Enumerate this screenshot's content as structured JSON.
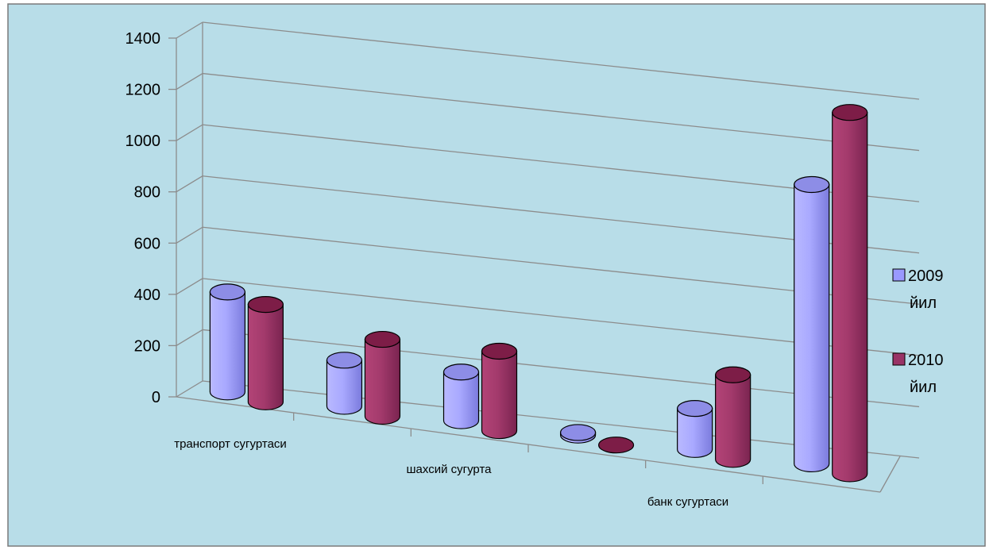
{
  "chart_data": {
    "type": "bar",
    "style": "3d-cylinder",
    "background": "#b8dde8",
    "categories": [
      "транспорт сугуртаси",
      "",
      "шахсий сугурта",
      "",
      "банк сугуртаси",
      ""
    ],
    "category_labels_shown": [
      "транспорт сугуртаси",
      "шахсий сугурта",
      "банк сугуртаси"
    ],
    "series": [
      {
        "name": "2009 йил",
        "color": "#9999ff",
        "values": [
          390,
          180,
          190,
          10,
          160,
          1090
        ]
      },
      {
        "name": "2010 йил",
        "color": "#993366",
        "values": [
          380,
          300,
          310,
          0,
          330,
          1410
        ]
      }
    ],
    "ylim": [
      0,
      1400
    ],
    "yticks": [
      "0",
      "200",
      "400",
      "600",
      "800",
      "1000",
      "1200",
      "1400"
    ],
    "grid": true,
    "legend_position": "right",
    "legend": [
      {
        "line1": "2009",
        "line2": "йил"
      },
      {
        "line1": "2010",
        "line2": "йил"
      }
    ]
  }
}
